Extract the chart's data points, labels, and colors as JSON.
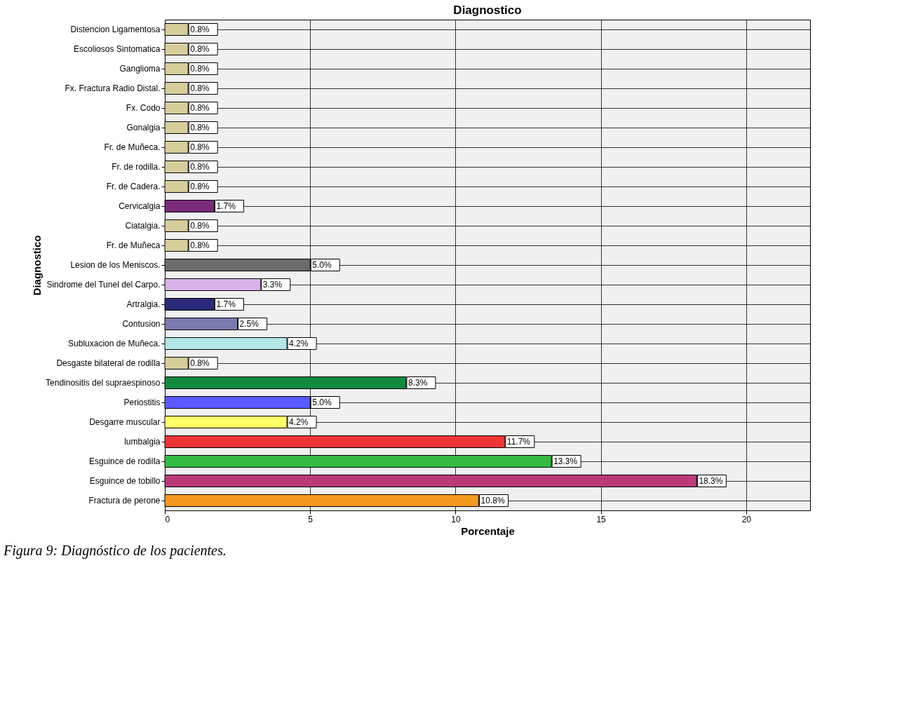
{
  "chart_data": {
    "type": "bar",
    "orientation": "horizontal",
    "title": "Diagnostico",
    "xlabel": "Porcentaje",
    "ylabel": "Diagnostico",
    "categories": [
      "Distencion Ligamentosa",
      "Escoliosos Sintomatica",
      "Ganglioma",
      "Fx. Fractura Radio Distal.",
      "Fx. Codo",
      "Gonalgia",
      "Fr. de Muñeca.",
      "Fr. de rodilla.",
      "Fr. de Cadera.",
      "Cervicalgia",
      "Ciatalgia.",
      "Fr. de Muñeca",
      "Lesion de los Meniscos.",
      "Sindrome del Tunel del Carpo.",
      "Artralgia.",
      "Contusion",
      "Subluxacion de Muñeca.",
      "Desgaste bilateral de rodilla",
      "Tendinositis del supraespinoso",
      "Periostitis",
      "Desgarre muscular",
      "lumbalgia",
      "Esguince de rodilla",
      "Esguince de tobillo",
      "Fractura de perone"
    ],
    "values": [
      0.8,
      0.8,
      0.8,
      0.8,
      0.8,
      0.8,
      0.8,
      0.8,
      0.8,
      1.7,
      0.8,
      0.8,
      5.0,
      3.3,
      1.7,
      2.5,
      4.2,
      0.8,
      8.3,
      5.0,
      4.2,
      11.7,
      13.3,
      18.3,
      10.8
    ],
    "value_labels": [
      "0.8%",
      "0.8%",
      "0.8%",
      "0.8%",
      "0.8%",
      "0.8%",
      "0.8%",
      "0.8%",
      "0.8%",
      "1.7%",
      "0.8%",
      "0.8%",
      "5.0%",
      "3.3%",
      "1.7%",
      "2.5%",
      "4.2%",
      "0.8%",
      "8.3%",
      "5.0%",
      "4.2%",
      "11.7%",
      "13.3%",
      "18.3%",
      "10.8%"
    ],
    "colors": [
      "#d6cd9b",
      "#d6cd9b",
      "#d6cd9b",
      "#d6cd9b",
      "#d6cd9b",
      "#d6cd9b",
      "#d6cd9b",
      "#d6cd9b",
      "#d6cd9b",
      "#7b2a7b",
      "#d6cd9b",
      "#d6cd9b",
      "#6b6b6b",
      "#d9b3e8",
      "#2a2a7a",
      "#7a7ab0",
      "#b3e6e6",
      "#d6cd9b",
      "#128a3e",
      "#5a5aff",
      "#ffff66",
      "#ef3535",
      "#33bb44",
      "#bb3a7a",
      "#f5991e"
    ],
    "xlim": [
      0,
      22.2
    ],
    "xticks": [
      0,
      5,
      10,
      15,
      20
    ],
    "grid": true,
    "annotations": [
      "Figura 9: Diagnóstico de los pacientes."
    ]
  }
}
